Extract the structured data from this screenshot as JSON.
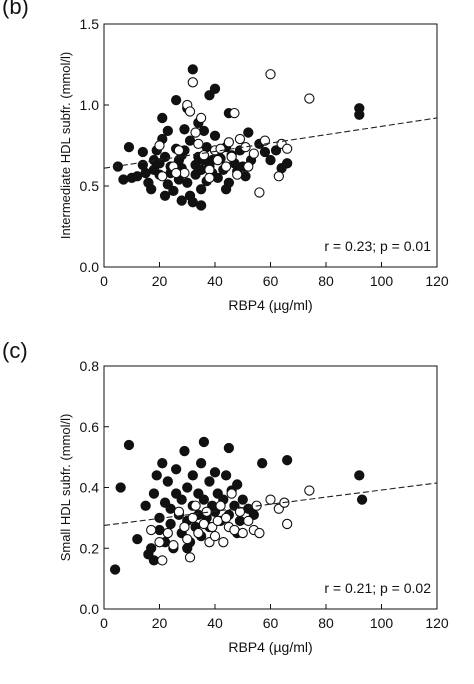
{
  "chart_data": [
    {
      "panel": "(b)",
      "type": "scatter",
      "title": "",
      "xlabel": "RBP4 (µg/ml)",
      "ylabel": "Intermediate HDL subfr. (mmol/l)",
      "xlim": [
        0,
        120
      ],
      "ylim": [
        0,
        1.5
      ],
      "xticks": [
        0,
        20,
        40,
        60,
        80,
        100,
        120
      ],
      "yticks": [
        0.0,
        0.5,
        1.0,
        1.5
      ],
      "ytick_labels": [
        "0.0",
        "0.5",
        "1.0",
        "1.5"
      ],
      "grid": false,
      "annotation": "r = 0.23; p = 0.01",
      "regression": {
        "style": "dashed",
        "x": [
          0,
          120
        ],
        "y": [
          0.61,
          0.92
        ]
      },
      "series": [
        {
          "marker": "filled",
          "points": [
            [
              5,
              0.62
            ],
            [
              7,
              0.54
            ],
            [
              9,
              0.74
            ],
            [
              10,
              0.55
            ],
            [
              12,
              0.56
            ],
            [
              14,
              0.63
            ],
            [
              15,
              0.58
            ],
            [
              16,
              0.52
            ],
            [
              17,
              0.48
            ],
            [
              18,
              0.66
            ],
            [
              18,
              0.6
            ],
            [
              19,
              0.72
            ],
            [
              20,
              0.64
            ],
            [
              20,
              0.57
            ],
            [
              21,
              0.92
            ],
            [
              21,
              0.79
            ],
            [
              22,
              0.68
            ],
            [
              22,
              0.44
            ],
            [
              23,
              0.51
            ],
            [
              23,
              0.84
            ],
            [
              24,
              0.62
            ],
            [
              24,
              0.58
            ],
            [
              25,
              0.47
            ],
            [
              26,
              1.03
            ],
            [
              26,
              0.73
            ],
            [
              27,
              0.66
            ],
            [
              27,
              0.54
            ],
            [
              28,
              0.69
            ],
            [
              28,
              0.61
            ],
            [
              29,
              0.72
            ],
            [
              29,
              0.85
            ],
            [
              30,
              0.52
            ],
            [
              30,
              0.98
            ],
            [
              31,
              0.44
            ],
            [
              31,
              0.78
            ],
            [
              32,
              0.4
            ],
            [
              32,
              1.22
            ],
            [
              33,
              0.63
            ],
            [
              33,
              0.57
            ],
            [
              34,
              0.68
            ],
            [
              34,
              0.89
            ],
            [
              35,
              0.6
            ],
            [
              35,
              0.48
            ],
            [
              36,
              0.84
            ],
            [
              36,
              0.66
            ],
            [
              37,
              0.74
            ],
            [
              37,
              0.53
            ],
            [
              38,
              1.06
            ],
            [
              38,
              0.62
            ],
            [
              39,
              0.58
            ],
            [
              40,
              1.1
            ],
            [
              40,
              0.81
            ],
            [
              41,
              0.71
            ],
            [
              41,
              0.55
            ],
            [
              42,
              0.67
            ],
            [
              43,
              0.6
            ],
            [
              44,
              0.74
            ],
            [
              45,
              0.52
            ],
            [
              46,
              0.69
            ],
            [
              47,
              0.64
            ],
            [
              48,
              0.59
            ],
            [
              49,
              0.72
            ],
            [
              50,
              0.62
            ],
            [
              51,
              0.56
            ],
            [
              52,
              0.83
            ],
            [
              53,
              0.66
            ],
            [
              56,
              0.76
            ],
            [
              58,
              0.71
            ],
            [
              60,
              0.66
            ],
            [
              62,
              0.72
            ],
            [
              64,
              0.61
            ],
            [
              66,
              0.64
            ],
            [
              92,
              0.94
            ],
            [
              92,
              0.98
            ],
            [
              45,
              0.95
            ],
            [
              35,
              0.38
            ],
            [
              28,
              0.41
            ],
            [
              14,
              0.71
            ],
            [
              39,
              0.66
            ],
            [
              44,
              0.48
            ]
          ]
        },
        {
          "marker": "open",
          "points": [
            [
              20,
              0.75
            ],
            [
              21,
              0.56
            ],
            [
              25,
              0.62
            ],
            [
              27,
              0.72
            ],
            [
              29,
              0.58
            ],
            [
              30,
              1.0
            ],
            [
              31,
              0.96
            ],
            [
              32,
              1.14
            ],
            [
              33,
              0.83
            ],
            [
              34,
              0.76
            ],
            [
              35,
              0.92
            ],
            [
              36,
              0.69
            ],
            [
              38,
              0.6
            ],
            [
              40,
              0.72
            ],
            [
              41,
              0.66
            ],
            [
              42,
              0.73
            ],
            [
              44,
              0.62
            ],
            [
              45,
              0.77
            ],
            [
              46,
              0.68
            ],
            [
              48,
              0.57
            ],
            [
              49,
              0.79
            ],
            [
              51,
              0.74
            ],
            [
              52,
              0.62
            ],
            [
              54,
              0.7
            ],
            [
              56,
              0.46
            ],
            [
              58,
              0.78
            ],
            [
              60,
              1.19
            ],
            [
              63,
              0.56
            ],
            [
              64,
              0.76
            ],
            [
              66,
              0.73
            ],
            [
              74,
              1.04
            ],
            [
              47,
              0.95
            ],
            [
              38,
              0.55
            ],
            [
              26,
              0.58
            ]
          ]
        }
      ]
    },
    {
      "panel": "(c)",
      "type": "scatter",
      "title": "",
      "xlabel": "RBP4 (µg/ml)",
      "ylabel": "Small HDL subfr. (mmol/l)",
      "xlim": [
        0,
        120
      ],
      "ylim": [
        0,
        0.8
      ],
      "xticks": [
        0,
        20,
        40,
        60,
        80,
        100,
        120
      ],
      "yticks": [
        0.0,
        0.2,
        0.4,
        0.6,
        0.8
      ],
      "ytick_labels": [
        "0.0",
        "0.2",
        "0.4",
        "0.6",
        "0.8"
      ],
      "grid": false,
      "annotation": "r = 0.21; p = 0.02",
      "regression": {
        "style": "dashed",
        "x": [
          0,
          120
        ],
        "y": [
          0.275,
          0.415
        ]
      },
      "series": [
        {
          "marker": "filled",
          "points": [
            [
              4,
              0.13
            ],
            [
              6,
              0.4
            ],
            [
              9,
              0.54
            ],
            [
              12,
              0.23
            ],
            [
              15,
              0.34
            ],
            [
              17,
              0.2
            ],
            [
              18,
              0.16
            ],
            [
              18,
              0.38
            ],
            [
              19,
              0.44
            ],
            [
              20,
              0.3
            ],
            [
              20,
              0.26
            ],
            [
              21,
              0.48
            ],
            [
              22,
              0.35
            ],
            [
              22,
              0.22
            ],
            [
              23,
              0.42
            ],
            [
              24,
              0.33
            ],
            [
              24,
              0.28
            ],
            [
              25,
              0.2
            ],
            [
              26,
              0.38
            ],
            [
              26,
              0.46
            ],
            [
              27,
              0.31
            ],
            [
              28,
              0.25
            ],
            [
              28,
              0.36
            ],
            [
              29,
              0.52
            ],
            [
              30,
              0.29
            ],
            [
              30,
              0.4
            ],
            [
              31,
              0.22
            ],
            [
              32,
              0.34
            ],
            [
              32,
              0.44
            ],
            [
              33,
              0.27
            ],
            [
              34,
              0.38
            ],
            [
              34,
              0.31
            ],
            [
              35,
              0.48
            ],
            [
              35,
              0.24
            ],
            [
              36,
              0.55
            ],
            [
              36,
              0.36
            ],
            [
              37,
              0.3
            ],
            [
              38,
              0.42
            ],
            [
              38,
              0.27
            ],
            [
              39,
              0.34
            ],
            [
              40,
              0.32
            ],
            [
              40,
              0.45
            ],
            [
              41,
              0.38
            ],
            [
              42,
              0.29
            ],
            [
              43,
              0.36
            ],
            [
              44,
              0.44
            ],
            [
              45,
              0.31
            ],
            [
              46,
              0.39
            ],
            [
              47,
              0.34
            ],
            [
              48,
              0.41
            ],
            [
              49,
              0.29
            ],
            [
              50,
              0.36
            ],
            [
              52,
              0.33
            ],
            [
              54,
              0.31
            ],
            [
              57,
              0.48
            ],
            [
              66,
              0.49
            ],
            [
              92,
              0.44
            ],
            [
              93,
              0.36
            ],
            [
              45,
              0.53
            ],
            [
              30,
              0.2
            ],
            [
              16,
              0.18
            ],
            [
              48,
              0.25
            ]
          ]
        },
        {
          "marker": "open",
          "points": [
            [
              17,
              0.26
            ],
            [
              20,
              0.22
            ],
            [
              21,
              0.16
            ],
            [
              23,
              0.25
            ],
            [
              25,
              0.21
            ],
            [
              27,
              0.32
            ],
            [
              29,
              0.27
            ],
            [
              30,
              0.23
            ],
            [
              31,
              0.17
            ],
            [
              32,
              0.3
            ],
            [
              33,
              0.34
            ],
            [
              34,
              0.25
            ],
            [
              36,
              0.28
            ],
            [
              37,
              0.32
            ],
            [
              38,
              0.22
            ],
            [
              39,
              0.27
            ],
            [
              40,
              0.24
            ],
            [
              41,
              0.29
            ],
            [
              42,
              0.34
            ],
            [
              43,
              0.22
            ],
            [
              44,
              0.3
            ],
            [
              45,
              0.27
            ],
            [
              46,
              0.38
            ],
            [
              47,
              0.26
            ],
            [
              49,
              0.32
            ],
            [
              50,
              0.25
            ],
            [
              52,
              0.29
            ],
            [
              54,
              0.26
            ],
            [
              55,
              0.34
            ],
            [
              56,
              0.25
            ],
            [
              60,
              0.36
            ],
            [
              63,
              0.33
            ],
            [
              65,
              0.35
            ],
            [
              66,
              0.28
            ],
            [
              74,
              0.39
            ]
          ]
        }
      ]
    }
  ]
}
